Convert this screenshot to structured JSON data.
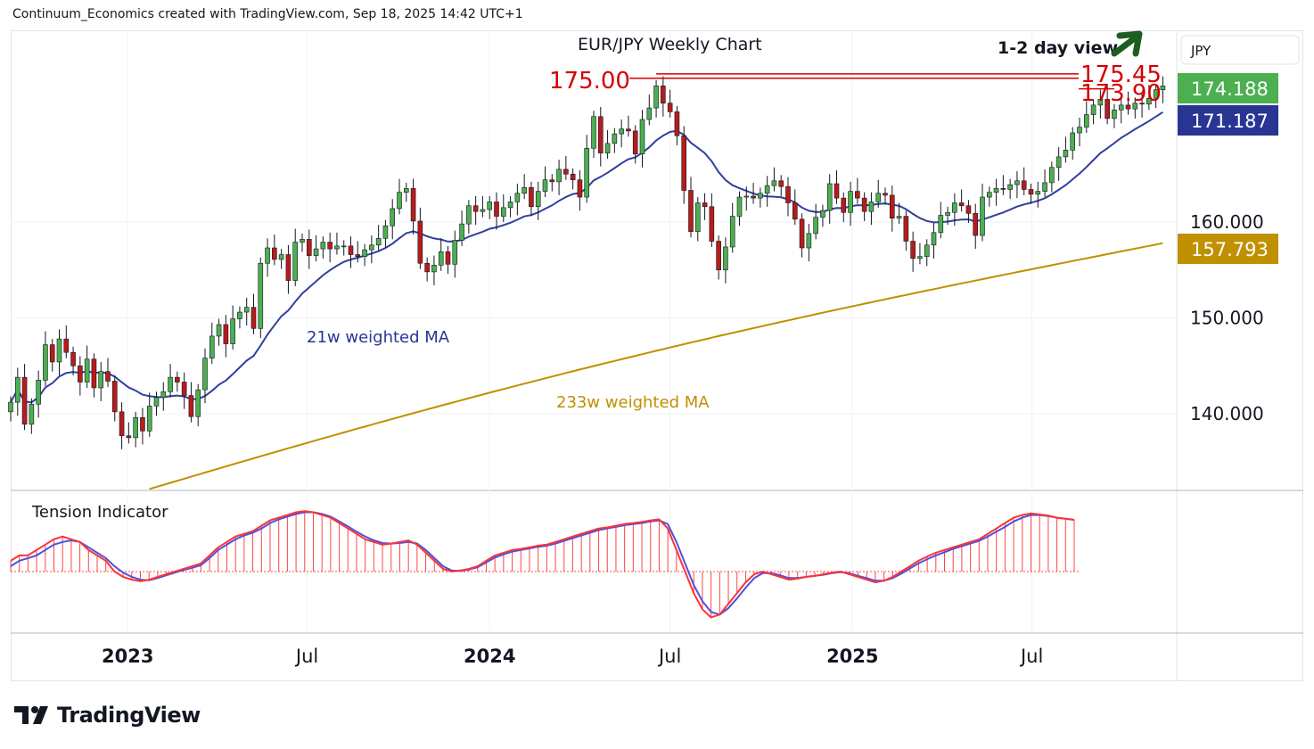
{
  "header": "Continuum_Economics created with TradingView.com, Sep 18, 2025 14:42 UTC+1",
  "brand": "TradingView",
  "currency": "JPY",
  "colors": {
    "up": "#4caf50",
    "down": "#b71c1c",
    "ma21": "#303f9f",
    "ma233": "#bf9000",
    "resistance": "#d50000",
    "arrow": "#1b5e20",
    "badge_price": "#4caf50",
    "badge_ma21": "#283593",
    "badge_ma233": "#bf9000",
    "tension_fast": "#ff3333",
    "tension_slow": "#5050e0",
    "tension_bars": "#ff4444"
  },
  "chart_data": [
    {
      "type": "candlestick",
      "title": "EUR/JPY Weekly Chart",
      "ylim": [
        132,
        180
      ],
      "y_ticks": [
        140,
        150,
        160
      ],
      "y_tick_labels": [
        "140.000",
        "150.000",
        "160.000"
      ],
      "x_tick_labels": [
        {
          "label": "2023",
          "date": "2023-01-01",
          "bold": true
        },
        {
          "label": "Jul",
          "date": "2023-07-01",
          "bold": false
        },
        {
          "label": "2024",
          "date": "2024-01-01",
          "bold": true
        },
        {
          "label": "Jul",
          "date": "2024-07-01",
          "bold": false
        },
        {
          "label": "2025",
          "date": "2025-01-01",
          "bold": true
        },
        {
          "label": "Jul",
          "date": "2025-07-01",
          "bold": false
        }
      ],
      "x_range": [
        "2022-09-05",
        "2025-11-24"
      ],
      "series": [
        {
          "name": "EUR/JPY",
          "start": "2022-09-05",
          "interval": "1w",
          "closes": [
            141.2,
            143.8,
            138.9,
            141.0,
            143.5,
            147.2,
            145.4,
            147.8,
            146.4,
            145.0,
            143.3,
            145.7,
            142.7,
            144.4,
            143.4,
            140.2,
            137.7,
            137.5,
            139.6,
            138.2,
            140.8,
            141.7,
            142.3,
            143.8,
            143.3,
            141.9,
            139.7,
            142.5,
            145.8,
            148.1,
            149.3,
            147.3,
            149.9,
            150.6,
            151.1,
            148.9,
            155.7,
            157.3,
            156.1,
            156.6,
            153.9,
            157.9,
            158.2,
            156.5,
            157.2,
            157.9,
            157.2,
            157.5,
            157.5,
            156.6,
            156.4,
            157.1,
            157.6,
            158.3,
            159.6,
            161.4,
            163.1,
            163.5,
            160.1,
            155.7,
            154.8,
            155.5,
            156.9,
            155.6,
            158.1,
            159.8,
            161.7,
            161.1,
            161.3,
            162.1,
            160.6,
            161.5,
            162.1,
            163.0,
            163.6,
            161.6,
            163.2,
            164.4,
            164.2,
            165.5,
            165.0,
            164.4,
            162.6,
            167.7,
            171.0,
            167.2,
            168.2,
            169.2,
            169.7,
            169.5,
            167.1,
            170.7,
            171.9,
            174.2,
            172.4,
            171.5,
            169.0,
            163.3,
            159.0,
            162.0,
            161.6,
            158.0,
            155.0,
            157.4,
            160.6,
            162.6,
            162.7,
            162.5,
            163.0,
            163.8,
            164.3,
            163.7,
            162.0,
            160.3,
            157.3,
            158.8,
            160.5,
            161.2,
            164.0,
            162.5,
            161.0,
            163.2,
            162.5,
            161.1,
            162.1,
            163.0,
            162.8,
            160.4,
            160.6,
            158.0,
            156.2,
            156.4,
            157.6,
            158.9,
            160.7,
            161.0,
            162.0,
            161.7,
            160.9,
            158.6,
            162.6,
            163.1,
            163.5,
            163.4,
            163.9,
            164.3,
            163.4,
            162.9,
            163.2,
            164.1,
            165.7,
            166.8,
            167.5,
            169.3,
            169.9,
            171.2,
            172.2,
            172.8,
            170.8,
            171.7,
            172.2,
            171.8,
            172.4,
            172.3,
            172.9,
            173.8,
            174.2
          ]
        },
        {
          "name": "21w weighted MA",
          "label_visible": true
        },
        {
          "name": "233w weighted MA",
          "label_visible": true
        }
      ],
      "annotations": {
        "view_label": "1-2 day view",
        "resistances": [
          {
            "value": 175.45,
            "label": "175.45"
          },
          {
            "value": 175.0,
            "label": "175.00"
          },
          {
            "value": 173.9,
            "label": "173.90"
          }
        ]
      },
      "price_badges": [
        {
          "value": 174.188,
          "label": "174.188",
          "series": "EUR/JPY"
        },
        {
          "value": 171.187,
          "label": "171.187",
          "series": "21w weighted MA"
        },
        {
          "value": 157.793,
          "label": "157.793",
          "series": "233w weighted MA"
        }
      ]
    },
    {
      "type": "line",
      "title": "Tension Indicator",
      "series": [
        {
          "name": "fast",
          "values": [
            0.2,
            0.3,
            0.3,
            0.4,
            0.5,
            0.6,
            0.65,
            0.6,
            0.55,
            0.4,
            0.3,
            0.2,
            0.0,
            -0.1,
            -0.15,
            -0.18,
            -0.15,
            -0.1,
            -0.05,
            0.0,
            0.05,
            0.1,
            0.15,
            0.3,
            0.45,
            0.55,
            0.65,
            0.7,
            0.75,
            0.85,
            0.95,
            1.0,
            1.05,
            1.1,
            1.12,
            1.1,
            1.05,
            1.0,
            0.9,
            0.8,
            0.7,
            0.6,
            0.55,
            0.5,
            0.52,
            0.55,
            0.58,
            0.5,
            0.35,
            0.2,
            0.05,
            0.0,
            0.02,
            0.05,
            0.1,
            0.2,
            0.3,
            0.35,
            0.4,
            0.42,
            0.45,
            0.48,
            0.5,
            0.55,
            0.6,
            0.65,
            0.7,
            0.75,
            0.8,
            0.82,
            0.85,
            0.88,
            0.9,
            0.92,
            0.95,
            0.97,
            0.8,
            0.4,
            0.0,
            -0.4,
            -0.7,
            -0.85,
            -0.8,
            -0.6,
            -0.4,
            -0.2,
            -0.05,
            0.0,
            -0.05,
            -0.1,
            -0.15,
            -0.13,
            -0.1,
            -0.08,
            -0.05,
            -0.02,
            0.0,
            -0.05,
            -0.1,
            -0.15,
            -0.2,
            -0.17,
            -0.1,
            0.0,
            0.1,
            0.2,
            0.28,
            0.35,
            0.4,
            0.45,
            0.5,
            0.55,
            0.6,
            0.7,
            0.8,
            0.9,
            1.0,
            1.05,
            1.08,
            1.06,
            1.04,
            1.0,
            0.98,
            0.96
          ]
        },
        {
          "name": "slow",
          "values": [
            0.1,
            0.2,
            0.25,
            0.3,
            0.4,
            0.5,
            0.55,
            0.58,
            0.55,
            0.45,
            0.35,
            0.25,
            0.1,
            -0.02,
            -0.1,
            -0.15,
            -0.16,
            -0.12,
            -0.07,
            -0.02,
            0.03,
            0.07,
            0.12,
            0.25,
            0.4,
            0.5,
            0.6,
            0.67,
            0.72,
            0.8,
            0.9,
            0.97,
            1.02,
            1.07,
            1.1,
            1.1,
            1.07,
            1.02,
            0.93,
            0.84,
            0.74,
            0.65,
            0.58,
            0.53,
            0.52,
            0.53,
            0.55,
            0.52,
            0.4,
            0.25,
            0.1,
            0.02,
            0.01,
            0.04,
            0.08,
            0.17,
            0.26,
            0.32,
            0.37,
            0.4,
            0.43,
            0.46,
            0.48,
            0.52,
            0.57,
            0.62,
            0.67,
            0.72,
            0.77,
            0.8,
            0.83,
            0.86,
            0.88,
            0.9,
            0.93,
            0.95,
            0.88,
            0.55,
            0.15,
            -0.25,
            -0.55,
            -0.75,
            -0.8,
            -0.68,
            -0.5,
            -0.3,
            -0.12,
            -0.03,
            -0.03,
            -0.07,
            -0.12,
            -0.12,
            -0.1,
            -0.08,
            -0.06,
            -0.03,
            -0.01,
            -0.03,
            -0.08,
            -0.12,
            -0.17,
            -0.17,
            -0.12,
            -0.04,
            0.06,
            0.15,
            0.23,
            0.3,
            0.36,
            0.42,
            0.47,
            0.52,
            0.57,
            0.65,
            0.74,
            0.83,
            0.93,
            1.0,
            1.05,
            1.05,
            1.03,
            1.0,
            0.98,
            0.96
          ]
        }
      ]
    }
  ]
}
